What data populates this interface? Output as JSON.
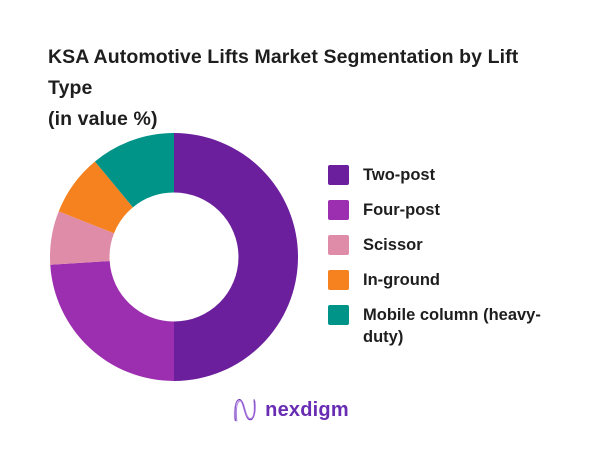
{
  "page": {
    "background": "#FFFFFF",
    "text_color": "#1E1E1E"
  },
  "header": {
    "title_line1": "KSA Automotive Lifts Market Segmentation by Lift Type",
    "title_line2": "(in value %)"
  },
  "chart_data": {
    "type": "pie",
    "subtype": "donut",
    "title": "KSA Automotive Lifts Market Segmentation by Lift Type (in value %)",
    "labels": [
      "Two-post",
      "Four-post",
      "Scissor",
      "In-ground",
      "Mobile column (heavy-duty)"
    ],
    "values": [
      50,
      24,
      7,
      8,
      11
    ],
    "unit": "%",
    "colors": [
      "#6B1F9C",
      "#9C2FAF",
      "#DE8CA8",
      "#F5821F",
      "#009489"
    ],
    "start_angle_deg": 0,
    "direction": "clockwise",
    "inner_radius_ratio": 0.52,
    "legend_position": "right",
    "data_labels_shown": false
  },
  "footer": {
    "logo_text": "nexdigm",
    "logo_color": "#692DB4"
  }
}
